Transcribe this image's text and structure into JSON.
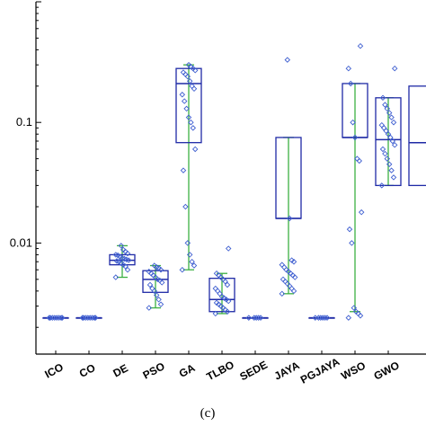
{
  "chart_data": {
    "type": "box",
    "y_scale": "log",
    "ylim": [
      0.0012,
      1.0
    ],
    "grid": false,
    "legend": "none",
    "y_ticks": [
      {
        "value": 0.1,
        "label": "0.1"
      },
      {
        "value": 0.01,
        "label": "0.01"
      }
    ],
    "caption": "(c)",
    "colors": {
      "box": "#1f2aa6",
      "whisker": "#3cb043",
      "point": "#3f5fd0",
      "axis": "#000000"
    },
    "categories": [
      "ICO",
      "CO",
      "DE",
      "PSO",
      "GA",
      "TLBO",
      "SEDE",
      "JAYA",
      "PGJAYA",
      "WSO",
      "GWO"
    ],
    "boxes": [
      {
        "name": "ICO",
        "whisker_low": 0.0024,
        "q1": 0.0024,
        "median": 0.0024,
        "q3": 0.0024,
        "whisker_high": 0.0024,
        "points": [
          0.0024,
          0.0024,
          0.0024,
          0.0024,
          0.0024,
          0.0024,
          0.0024,
          0.0024
        ]
      },
      {
        "name": "CO",
        "whisker_low": 0.0024,
        "q1": 0.0024,
        "median": 0.0024,
        "q3": 0.0024,
        "whisker_high": 0.0024,
        "points": [
          0.0024,
          0.0024,
          0.0024,
          0.0024,
          0.0024,
          0.0024,
          0.0024,
          0.0024
        ]
      },
      {
        "name": "DE",
        "whisker_low": 0.0052,
        "q1": 0.0066,
        "median": 0.0072,
        "q3": 0.008,
        "whisker_high": 0.0095,
        "points": [
          0.0052,
          0.006,
          0.0064,
          0.0066,
          0.0068,
          0.007,
          0.0071,
          0.0072,
          0.0073,
          0.0074,
          0.0075,
          0.0077,
          0.0079,
          0.008,
          0.0082,
          0.0085,
          0.0088,
          0.0095
        ]
      },
      {
        "name": "PSO",
        "whisker_low": 0.0029,
        "q1": 0.0039,
        "median": 0.005,
        "q3": 0.0059,
        "whisker_high": 0.0065,
        "points": [
          0.0029,
          0.0031,
          0.0034,
          0.0037,
          0.004,
          0.0042,
          0.0045,
          0.0047,
          0.0049,
          0.005,
          0.0052,
          0.0054,
          0.0056,
          0.0058,
          0.006,
          0.0062,
          0.0063,
          0.0065
        ]
      },
      {
        "name": "GA",
        "whisker_low": 0.006,
        "q1": 0.068,
        "median": 0.21,
        "q3": 0.28,
        "whisker_high": 0.3,
        "points": [
          0.006,
          0.0065,
          0.007,
          0.008,
          0.01,
          0.02,
          0.04,
          0.06,
          0.09,
          0.1,
          0.11,
          0.13,
          0.15,
          0.17,
          0.19,
          0.2,
          0.22,
          0.24,
          0.25,
          0.26,
          0.27,
          0.28,
          0.29,
          0.3
        ]
      },
      {
        "name": "TLBO",
        "whisker_low": 0.0026,
        "q1": 0.0027,
        "median": 0.0034,
        "q3": 0.0051,
        "whisker_high": 0.0056,
        "points": [
          0.0026,
          0.0027,
          0.0028,
          0.0029,
          0.003,
          0.0031,
          0.0032,
          0.0033,
          0.0034,
          0.0035,
          0.0036,
          0.0038,
          0.004,
          0.0042,
          0.0045,
          0.0048,
          0.005,
          0.0052,
          0.0054,
          0.0056,
          0.009
        ]
      },
      {
        "name": "SEDE",
        "whisker_low": 0.0024,
        "q1": 0.0024,
        "median": 0.0024,
        "q3": 0.0024,
        "whisker_high": 0.0024,
        "points": [
          0.0024,
          0.0024,
          0.0024,
          0.0024,
          0.0024
        ]
      },
      {
        "name": "JAYA",
        "whisker_low": 0.0038,
        "q1": 0.016,
        "median": 0.016,
        "q3": 0.075,
        "whisker_high": 0.075,
        "points": [
          0.0038,
          0.004,
          0.0042,
          0.0044,
          0.0046,
          0.0048,
          0.005,
          0.0052,
          0.0054,
          0.0056,
          0.0058,
          0.006,
          0.0063,
          0.0066,
          0.007,
          0.0072,
          0.016,
          0.33
        ]
      },
      {
        "name": "PGJAYA",
        "whisker_low": 0.0024,
        "q1": 0.0024,
        "median": 0.0024,
        "q3": 0.0024,
        "whisker_high": 0.0024,
        "points": [
          0.0024,
          0.0024,
          0.0024,
          0.0024,
          0.0024,
          0.0024
        ]
      },
      {
        "name": "WSO",
        "whisker_low": 0.0027,
        "q1": 0.075,
        "median": 0.075,
        "q3": 0.21,
        "whisker_high": 0.21,
        "points": [
          0.0024,
          0.0025,
          0.0026,
          0.0027,
          0.0029,
          0.01,
          0.013,
          0.018,
          0.048,
          0.05,
          0.075,
          0.1,
          0.21,
          0.28,
          0.43
        ]
      },
      {
        "name": "GWO",
        "whisker_low": 0.03,
        "q1": 0.03,
        "median": 0.072,
        "q3": 0.16,
        "whisker_high": 0.16,
        "points": [
          0.03,
          0.035,
          0.04,
          0.045,
          0.05,
          0.055,
          0.06,
          0.065,
          0.07,
          0.075,
          0.08,
          0.085,
          0.09,
          0.095,
          0.1,
          0.11,
          0.12,
          0.13,
          0.14,
          0.16,
          0.28
        ]
      }
    ],
    "partial_box": {
      "q1": 0.03,
      "median": 0.068,
      "q3": 0.2
    }
  }
}
